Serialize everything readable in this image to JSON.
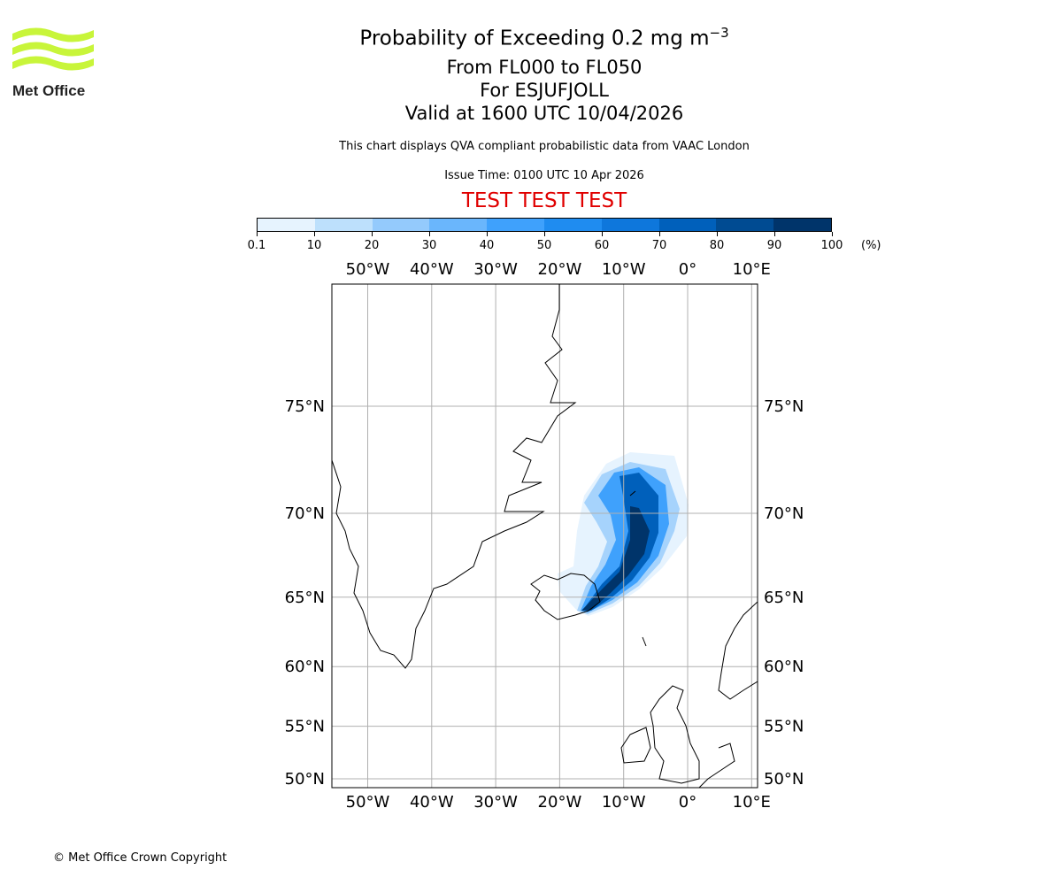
{
  "header": {
    "title": "Probability of Exceeding 0.2 mg m",
    "title_sup": "−3",
    "line2": "From FL000 to FL050",
    "line3": "For ESJUFJOLL",
    "line4": "Valid at 1600 UTC 10/04/2026",
    "note": "This chart displays QVA compliant probabilistic data from VAAC London",
    "issue": "Issue Time: 0100 UTC 10 Apr 2026",
    "test": "TEST TEST TEST"
  },
  "logo": {
    "text": "Met Office",
    "color": "#c8f53a"
  },
  "colorbar": {
    "ticks": [
      "0.1",
      "10",
      "20",
      "30",
      "40",
      "50",
      "60",
      "70",
      "80",
      "90",
      "100"
    ],
    "unit": "(%)",
    "colors": [
      "#e6f3fe",
      "#bde0fc",
      "#94cafc",
      "#6ab6fc",
      "#3fa1fc",
      "#1f8cf0",
      "#0e77dc",
      "#0060bb",
      "#004b92",
      "#00346a"
    ]
  },
  "map": {
    "lon_labels": [
      "50°W",
      "40°W",
      "30°W",
      "20°W",
      "10°W",
      "0°",
      "10°E"
    ],
    "lons": [
      -50,
      -40,
      -30,
      -20,
      -10,
      0,
      10
    ],
    "lat_labels": [
      "75°N",
      "70°N",
      "65°N",
      "60°N",
      "55°N",
      "50°N"
    ],
    "lats": [
      75,
      70,
      65,
      60,
      55,
      50
    ]
  },
  "footer": {
    "copyright": "© Met Office Crown Copyright"
  }
}
